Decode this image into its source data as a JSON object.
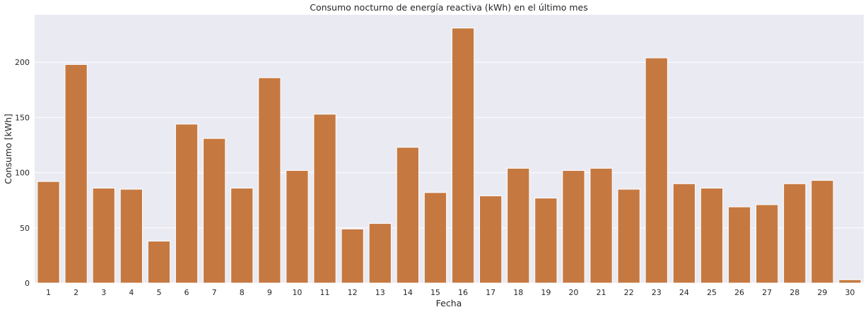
{
  "chart_data": {
    "type": "bar",
    "title": "Consumo nocturno de energía reactiva (kWh) en el último mes",
    "xlabel": "Fecha",
    "ylabel": "Consumo [kWh]",
    "categories": [
      "1",
      "2",
      "3",
      "4",
      "5",
      "6",
      "7",
      "8",
      "9",
      "10",
      "11",
      "12",
      "13",
      "14",
      "15",
      "16",
      "17",
      "18",
      "19",
      "20",
      "21",
      "22",
      "23",
      "24",
      "25",
      "26",
      "27",
      "28",
      "29",
      "30"
    ],
    "values": [
      92,
      198,
      86,
      85,
      38,
      144,
      131,
      86,
      186,
      102,
      153,
      49,
      54,
      123,
      82,
      231,
      79,
      104,
      77,
      102,
      104,
      85,
      204,
      90,
      86,
      69,
      71,
      90,
      93,
      3
    ],
    "ylim": [
      0,
      243
    ],
    "yticks": [
      "0",
      "50",
      "100",
      "150",
      "200"
    ],
    "grid": true,
    "bar_color": "#c57941",
    "background_color": "#eaeaf2"
  }
}
